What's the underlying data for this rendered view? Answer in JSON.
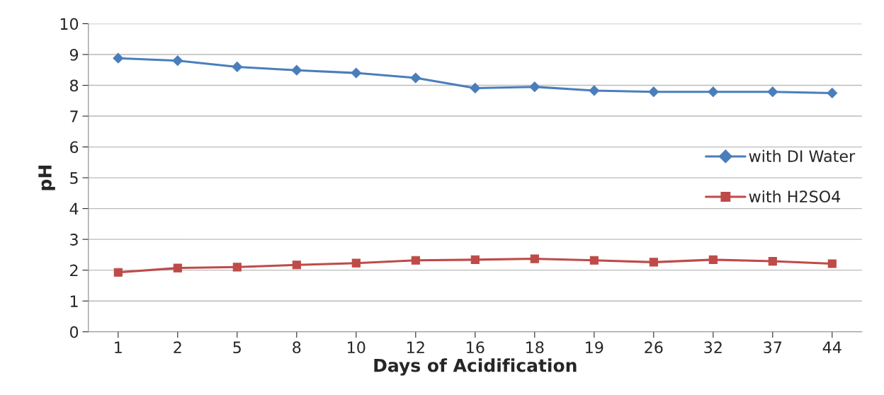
{
  "chart_data": {
    "type": "line",
    "xlabel": "Days of Acidification",
    "ylabel": "pH",
    "categories": [
      "1",
      "2",
      "5",
      "8",
      "10",
      "12",
      "16",
      "18",
      "19",
      "26",
      "32",
      "37",
      "44"
    ],
    "series": [
      {
        "name": "with DI Water",
        "color": "#4a7ebb",
        "marker": "diamond",
        "values": [
          8.88,
          8.8,
          8.6,
          8.49,
          8.4,
          8.24,
          7.91,
          7.95,
          7.83,
          7.79,
          7.79,
          7.79,
          7.75
        ]
      },
      {
        "name": "with H2SO4",
        "color": "#be4b48",
        "marker": "square",
        "values": [
          1.93,
          2.07,
          2.1,
          2.17,
          2.23,
          2.32,
          2.34,
          2.37,
          2.32,
          2.26,
          2.34,
          2.29,
          2.21
        ]
      }
    ],
    "ylim": [
      0,
      10
    ],
    "yticks": [
      0,
      1,
      2,
      3,
      4,
      5,
      6,
      7,
      8,
      9,
      10
    ],
    "grid": "y",
    "legend": "right",
    "line_style": "solid"
  }
}
